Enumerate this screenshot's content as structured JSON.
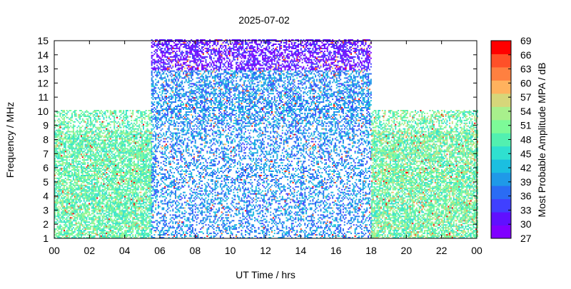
{
  "chart_data": {
    "type": "heatmap",
    "title": "2025-07-02",
    "xlabel": "UT Time / hrs",
    "ylabel": "Frequency / MHz",
    "colorbar_label": "Most Probable Amplitude MPA / dB",
    "xlim": [
      0,
      24
    ],
    "ylim": [
      1,
      15
    ],
    "x_ticks": [
      "00",
      "02",
      "04",
      "06",
      "08",
      "10",
      "12",
      "14",
      "16",
      "18",
      "20",
      "22",
      "00"
    ],
    "y_ticks": [
      "1",
      "2",
      "3",
      "4",
      "5",
      "6",
      "7",
      "8",
      "9",
      "10",
      "11",
      "12",
      "13",
      "14",
      "15"
    ],
    "colorbar_ticks": [
      "27",
      "30",
      "33",
      "36",
      "39",
      "42",
      "45",
      "48",
      "51",
      "54",
      "57",
      "60",
      "63",
      "66",
      "69"
    ],
    "colorbar_range": [
      27,
      69
    ],
    "colorbar_colors": [
      "#8000ff",
      "#6010ff",
      "#4040ff",
      "#2a6cf4",
      "#1f99e8",
      "#1bbfe0",
      "#2fe0d0",
      "#52f0b0",
      "#7dfa98",
      "#a8f08c",
      "#d6d67a",
      "#ffb25e",
      "#ff8040",
      "#ff5028",
      "#ff0000"
    ],
    "regions": [
      {
        "t_start": 0,
        "t_end": 5.5,
        "f_top": 10,
        "amp_low": 44,
        "amp_high": 54,
        "note": "no label"
      },
      {
        "t_start": 5.5,
        "t_end": 18,
        "f_top": 15,
        "amp_low": 34,
        "amp_high": 44
      },
      {
        "t_start": 18,
        "t_end": 24,
        "f_top": 10,
        "amp_low": 44,
        "amp_high": 56
      }
    ]
  }
}
